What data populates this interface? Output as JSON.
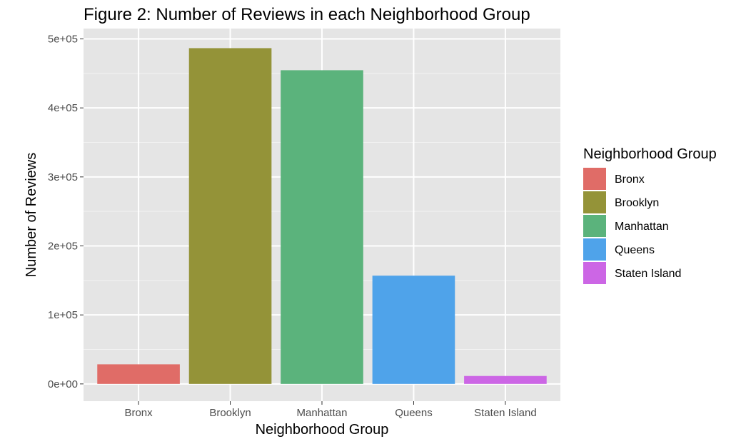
{
  "chart_data": {
    "type": "bar",
    "title": "Figure 2: Number of Reviews in each Neighborhood Group",
    "xlabel": "Neighborhood Group",
    "ylabel": "Number of Reviews",
    "categories": [
      "Bronx",
      "Brooklyn",
      "Manhattan",
      "Queens",
      "Staten Island"
    ],
    "values": [
      28400,
      486600,
      454600,
      156900,
      11500
    ],
    "colors": [
      "#E06C67",
      "#949338",
      "#5BB37C",
      "#4FA3EA",
      "#CC66E5"
    ],
    "ylim": [
      -25000,
      515000
    ],
    "yticks": [
      0,
      100000,
      200000,
      300000,
      400000,
      500000
    ],
    "ytick_labels": [
      "0e+00",
      "1e+05",
      "2e+05",
      "3e+05",
      "4e+05",
      "5e+05"
    ],
    "grid": true,
    "legend": {
      "title": "Neighborhood Group",
      "position": "right",
      "entries": [
        "Bronx",
        "Brooklyn",
        "Manhattan",
        "Queens",
        "Staten Island"
      ]
    }
  }
}
